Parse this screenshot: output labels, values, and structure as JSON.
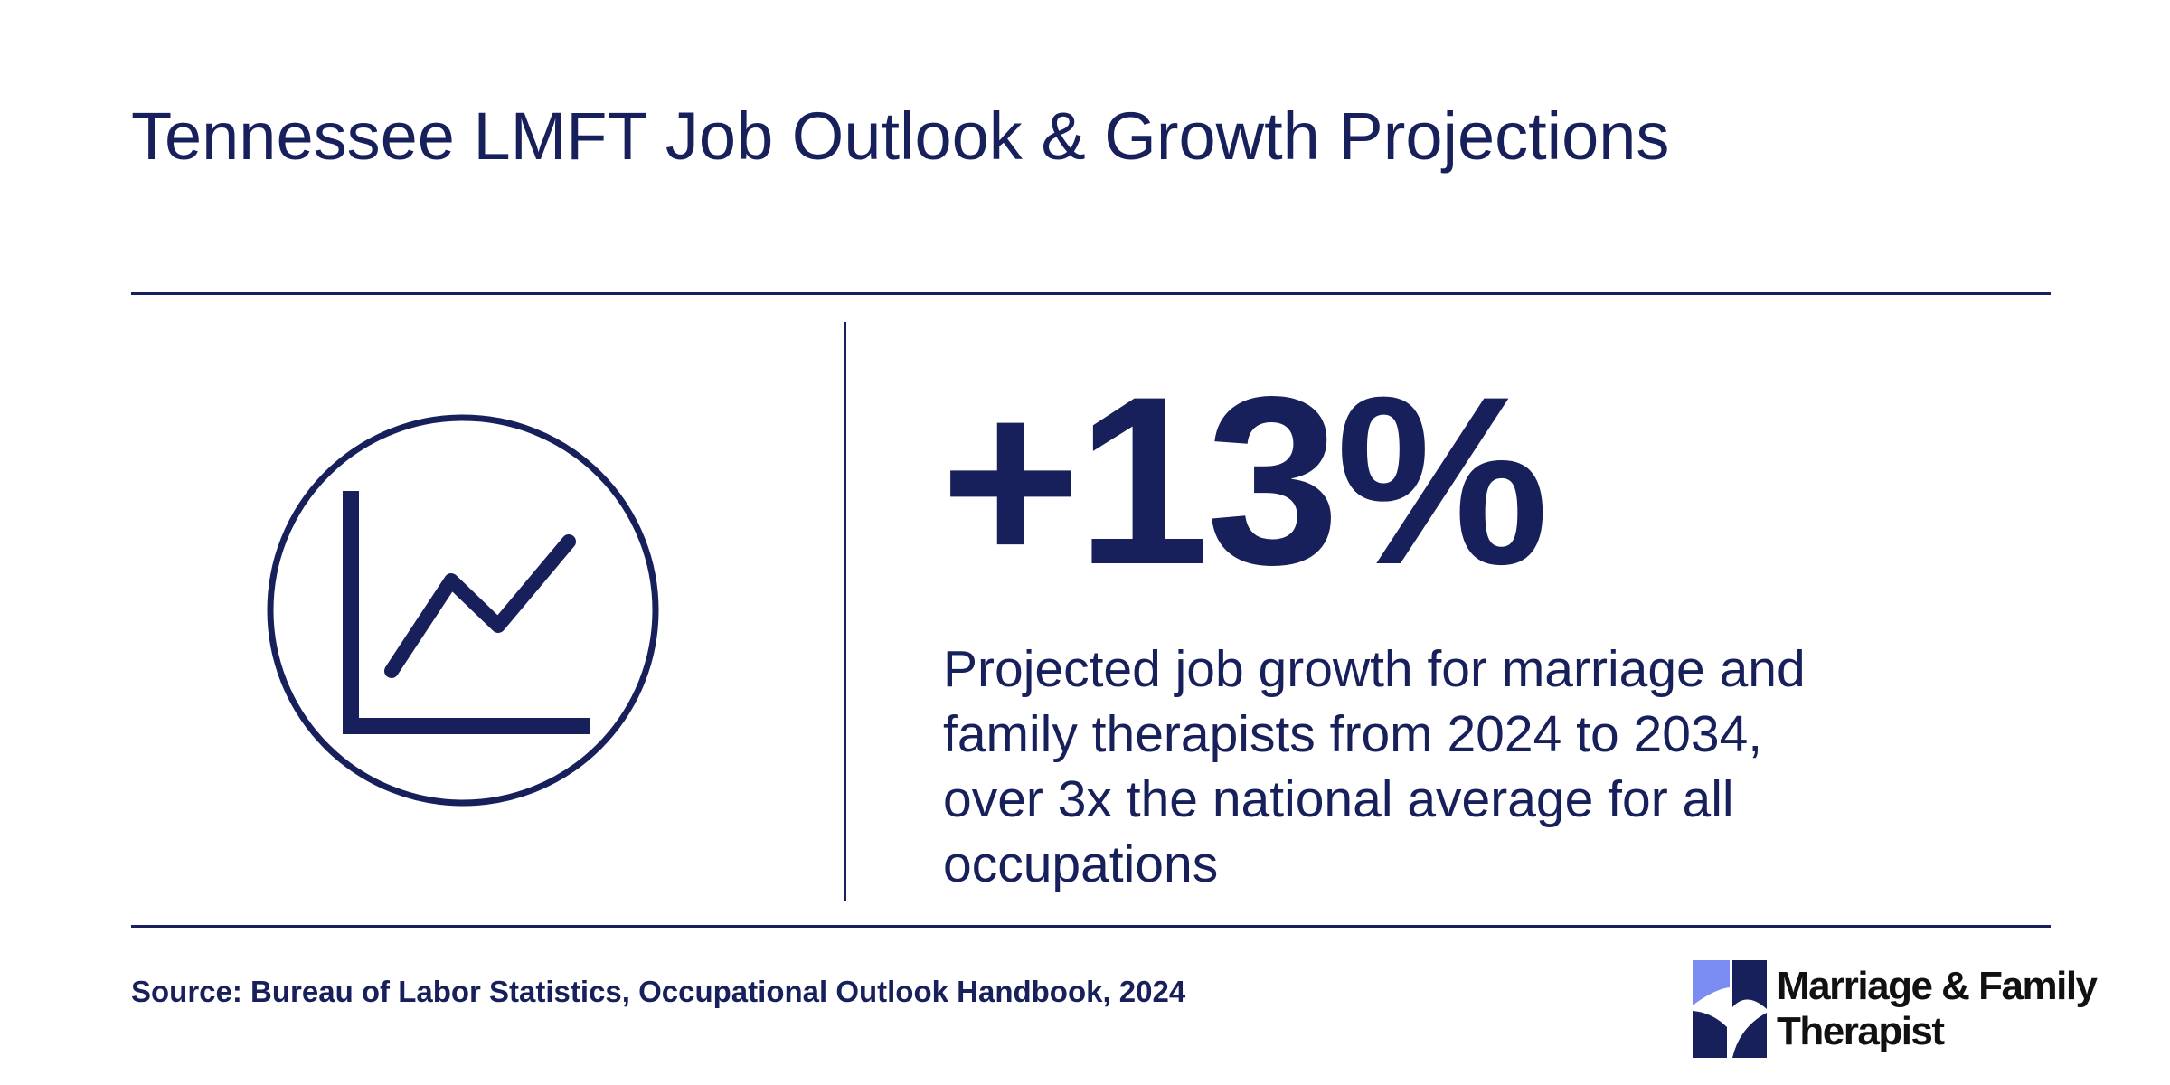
{
  "title": "Tennessee LMFT Job Outlook & Growth Projections",
  "stat": {
    "value": "+13%",
    "description": "Projected job growth for marriage and family therapists from 2024 to 2034, over 3x the national average for all occupations"
  },
  "source": "Source: Bureau of Labor Statistics, Occupational Outlook Handbook, 2024",
  "brand": {
    "line1": "Marriage & Family",
    "line2": "Therapist"
  },
  "icons": {
    "stat_icon": "line-chart-circle-icon",
    "brand_icon": "pinwheel-logo-icon"
  },
  "colors": {
    "primary": "#17205a",
    "brand_light": "#7b8cf2",
    "brand_dark": "#17205a",
    "logo_text": "#111111",
    "background": "#ffffff"
  }
}
